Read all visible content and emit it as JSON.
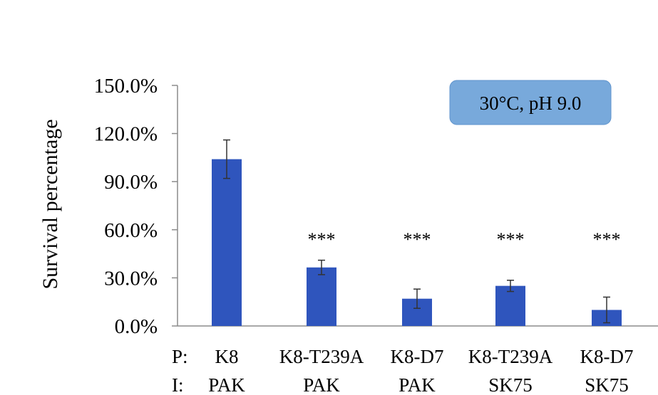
{
  "chart_data": {
    "type": "bar",
    "ylabel": "Survival percentage",
    "ylim": [
      0,
      150
    ],
    "yticks": [
      0,
      30,
      60,
      90,
      120,
      150
    ],
    "ytick_labels": [
      "0.0%",
      "30.0%",
      "60.0%",
      "90.0%",
      "120.0%",
      "150.0%"
    ],
    "row_labels": [
      "P:",
      "I:"
    ],
    "categories": [
      {
        "p": "K8",
        "i": "PAK"
      },
      {
        "p": "K8-T239A",
        "i": "PAK"
      },
      {
        "p": "K8-D7",
        "i": "PAK"
      },
      {
        "p": "K8-T239A",
        "i": "SK75"
      },
      {
        "p": "K8-D7",
        "i": "SK75"
      }
    ],
    "values": [
      104,
      36.5,
      17,
      25,
      10
    ],
    "errors": [
      12,
      4.5,
      6,
      3.5,
      8
    ],
    "significance": [
      "",
      "***",
      "***",
      "***",
      "***"
    ],
    "annotation": "30°C, pH 9.0",
    "bar_color": "#2f55bd",
    "badge_color": "#78a9db",
    "grid": false
  }
}
